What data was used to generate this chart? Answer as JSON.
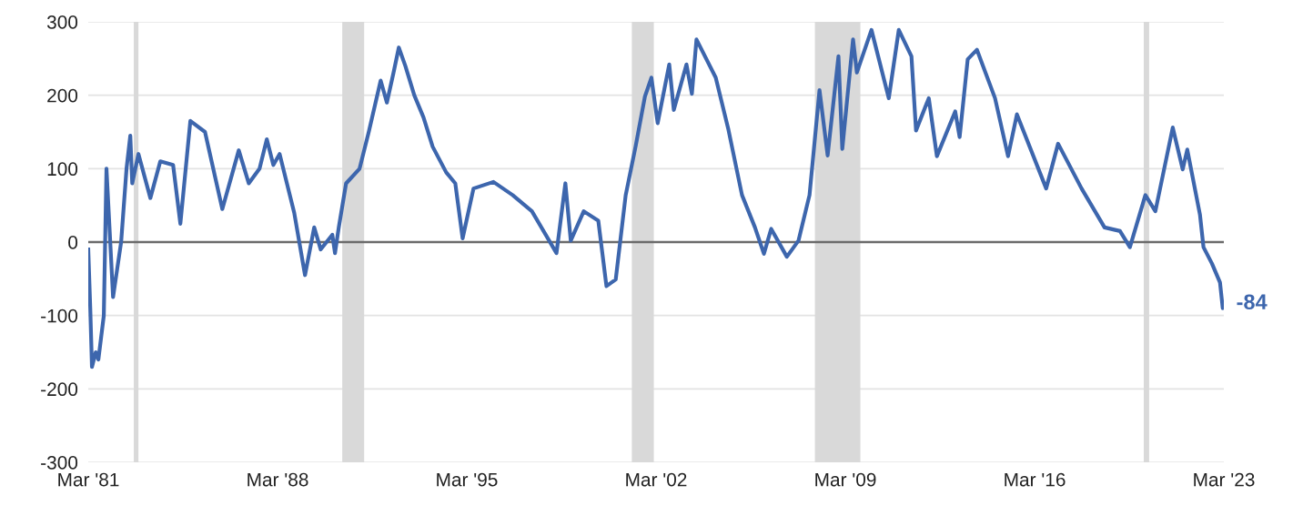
{
  "chart_data": {
    "type": "line",
    "x": [
      "1981-03-01",
      "1981-03-28",
      "1981-04-20",
      "1981-06-10",
      "1981-07-16",
      "1981-09-27",
      "1981-11-02",
      "1982-01-30",
      "1982-05-19",
      "1982-07-31",
      "1982-09-20",
      "1982-10-16",
      "1983-01-08",
      "1983-06-18",
      "1983-10-30",
      "1984-04-20",
      "1984-07-27",
      "1984-12-09",
      "1985-06-25",
      "1986-02-14",
      "1986-09-24",
      "1987-02-06",
      "1987-07-02",
      "1987-10-08",
      "1988-01-04",
      "1988-03-29",
      "1988-10-12",
      "1989-03-07",
      "1989-07-09",
      "1989-10-05",
      "1990-03-11",
      "1990-04-16",
      "1990-06-06",
      "1990-09-13",
      "1991-03-14",
      "1991-07-16",
      "1991-12-24",
      "1992-03-17",
      "1992-06-13",
      "1992-08-25",
      "1992-11-21",
      "1993-03-22",
      "1993-07-24",
      "1993-11-25",
      "1994-05-27",
      "1994-09-27",
      "1995-01-04",
      "1995-05-31",
      "1996-02-24",
      "1996-11-10",
      "1997-07-28",
      "1998-06-25",
      "1998-10-23",
      "1999-01-04",
      "1999-06-28",
      "2000-01-11",
      "2000-04-30",
      "2000-09-02",
      "2001-01-15",
      "2001-05-30",
      "2001-10-01",
      "2001-12-28",
      "2002-03-23",
      "2002-08-26",
      "2002-10-27",
      "2003-04-16",
      "2003-06-28",
      "2003-08-29",
      "2004-05-15",
      "2004-11-03",
      "2005-05-05",
      "2005-10-27",
      "2006-02-25",
      "2006-06-03",
      "2007-01-01",
      "2007-06-07",
      "2007-11-03",
      "2008-03-17",
      "2008-07-05",
      "2008-11-28",
      "2009-01-19",
      "2009-06-13",
      "2009-08-04",
      "2010-02-17",
      "2010-10-09",
      "2011-02-21",
      "2011-08-11",
      "2011-10-12",
      "2012-04-01",
      "2012-07-20",
      "2013-03-24",
      "2013-05-23",
      "2013-09-09",
      "2014-01-12",
      "2014-09-13",
      "2015-03-08",
      "2015-07-06",
      "2016-08-04",
      "2017-01-12",
      "2017-11-25",
      "2018-10-01",
      "2019-04-28",
      "2019-09-09",
      "2020-04-05",
      "2020-08-18",
      "2021-04-10",
      "2021-08-22",
      "2021-10-23",
      "2022-04-13",
      "2022-05-30",
      "2022-09-20",
      "2023-01-08",
      "2023-02-14",
      "2023-02-25"
    ],
    "series": [
      {
        "color": "#3d66ad",
        "values": [
          -10,
          -90,
          -170,
          -150,
          -160,
          -100,
          100,
          -75,
          0,
          100,
          145,
          80,
          120,
          60,
          110,
          105,
          25,
          165,
          150,
          45,
          125,
          80,
          100,
          140,
          105,
          120,
          40,
          -45,
          20,
          -10,
          10,
          -15,
          20,
          80,
          100,
          150,
          220,
          190,
          230,
          265,
          240,
          200,
          170,
          130,
          95,
          80,
          5,
          73,
          82,
          64,
          42,
          -15,
          80,
          2,
          42,
          29,
          -60,
          -51,
          64,
          131,
          198,
          224,
          162,
          242,
          180,
          242,
          202,
          276,
          224,
          153,
          64,
          20,
          -16,
          18,
          -20,
          2,
          64,
          207,
          118,
          253,
          127,
          276,
          231,
          289,
          196,
          289,
          253,
          152,
          196,
          117,
          178,
          143,
          249,
          262,
          196,
          117,
          174,
          73,
          134,
          73,
          20,
          15,
          -7,
          64,
          42,
          156,
          99,
          126,
          37,
          -7,
          -29,
          -55,
          -90,
          -84
        ]
      }
    ],
    "xlim": [
      "1981-03-01",
      "2023-03-01"
    ],
    "xticks": [
      {
        "value": "1981-03-01",
        "label": "Mar '81"
      },
      {
        "value": "1988-03-01",
        "label": "Mar '88"
      },
      {
        "value": "1995-03-01",
        "label": "Mar '95"
      },
      {
        "value": "2002-03-01",
        "label": "Mar '02"
      },
      {
        "value": "2009-03-01",
        "label": "Mar '09"
      },
      {
        "value": "2016-03-01",
        "label": "Mar '16"
      },
      {
        "value": "2023-03-01",
        "label": "Mar '23"
      }
    ],
    "ylim": [
      -300,
      300
    ],
    "yticks": [
      -300,
      -200,
      -100,
      0,
      100,
      200,
      300
    ],
    "grid": "y",
    "ref_lines": [
      {
        "axis": "y",
        "value": 0,
        "color": "#6b6b6b"
      }
    ],
    "bands": [
      {
        "axis": "x",
        "from": "1982-11-06",
        "to": "1983-01-08",
        "color": "#d9d9d9"
      },
      {
        "axis": "x",
        "from": "1990-07-23",
        "to": "1991-05-15",
        "color": "#d9d9d9"
      },
      {
        "axis": "x",
        "from": "2001-04-08",
        "to": "2002-01-30",
        "color": "#d9d9d9"
      },
      {
        "axis": "x",
        "from": "2008-01-15",
        "to": "2009-09-20",
        "color": "#d9d9d9"
      },
      {
        "axis": "x",
        "from": "2020-03-14",
        "to": "2020-05-26",
        "color": "#d9d9d9"
      }
    ],
    "annotations": [
      {
        "text": "-84",
        "x": "2023-02-25",
        "y": -84
      }
    ]
  }
}
